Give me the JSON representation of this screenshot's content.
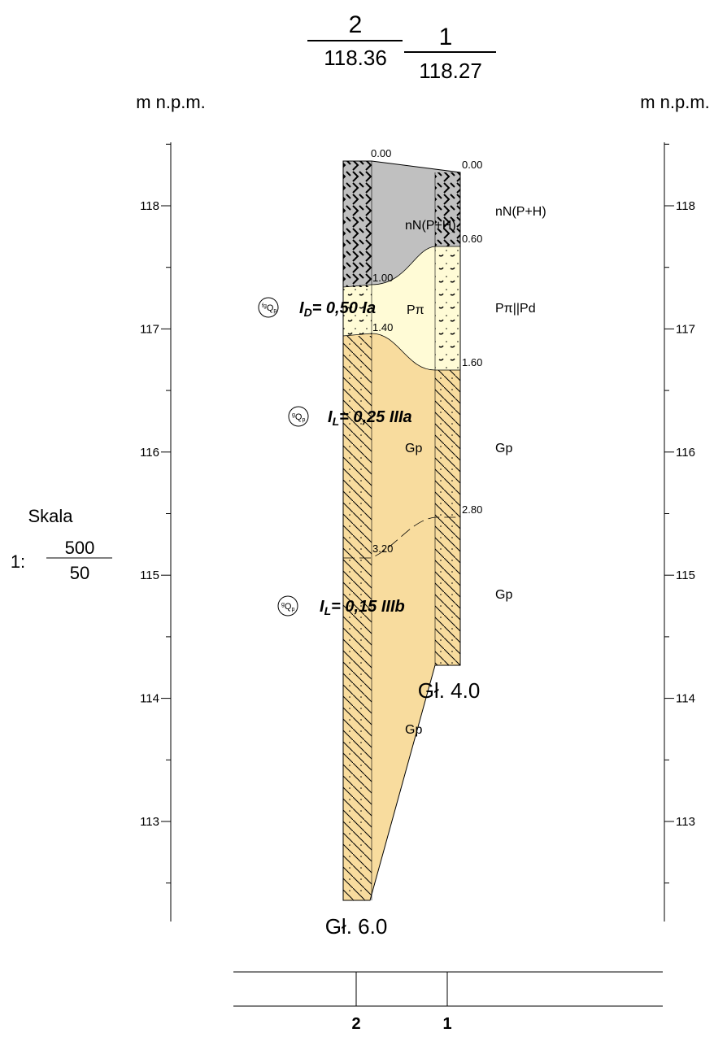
{
  "header": {
    "boreholes": [
      {
        "id": "2",
        "elevation": "118.36"
      },
      {
        "id": "1",
        "elevation": "118.27"
      }
    ]
  },
  "axis_label_left": "m n.p.m.",
  "axis_label_right": "m n.p.m.",
  "yticks": [
    118,
    117,
    116,
    115,
    114,
    113
  ],
  "scale": {
    "title": "Skala",
    "prefix": "1:",
    "numerator": "500",
    "denominator": "50"
  },
  "boreholes": [
    {
      "depths": [
        "0.00",
        "1.00",
        "1.40",
        "3.20"
      ],
      "bottom": "Gł. 6.0"
    },
    {
      "depths": [
        "0.00",
        "0.60",
        "1.60",
        "2.80"
      ],
      "bottom": "Gł. 4.0"
    }
  ],
  "column_labels": [
    "nN(P+H)",
    "Pπ",
    "Gp",
    "Gp"
  ],
  "right_labels": [
    "nN(P+H)",
    "Pπ||Pd",
    "Gp",
    "Gp"
  ],
  "annotations": [
    {
      "genesis_sup": "fg",
      "genesis": "Q",
      "genesis_sub": "p",
      "index": "I",
      "index_sub": "D",
      "text": "= 0,50 Ia"
    },
    {
      "genesis_sup": "g",
      "genesis": "Q",
      "genesis_sub": "p",
      "index": "I",
      "index_sub": "L",
      "text": "= 0,25 IIIa"
    },
    {
      "genesis_sup": "g",
      "genesis": "Q",
      "genesis_sub": "p",
      "index": "I",
      "index_sub": "L",
      "text": "= 0,15 IIIb"
    }
  ],
  "footer": {
    "cells": [
      "2",
      "1"
    ]
  }
}
